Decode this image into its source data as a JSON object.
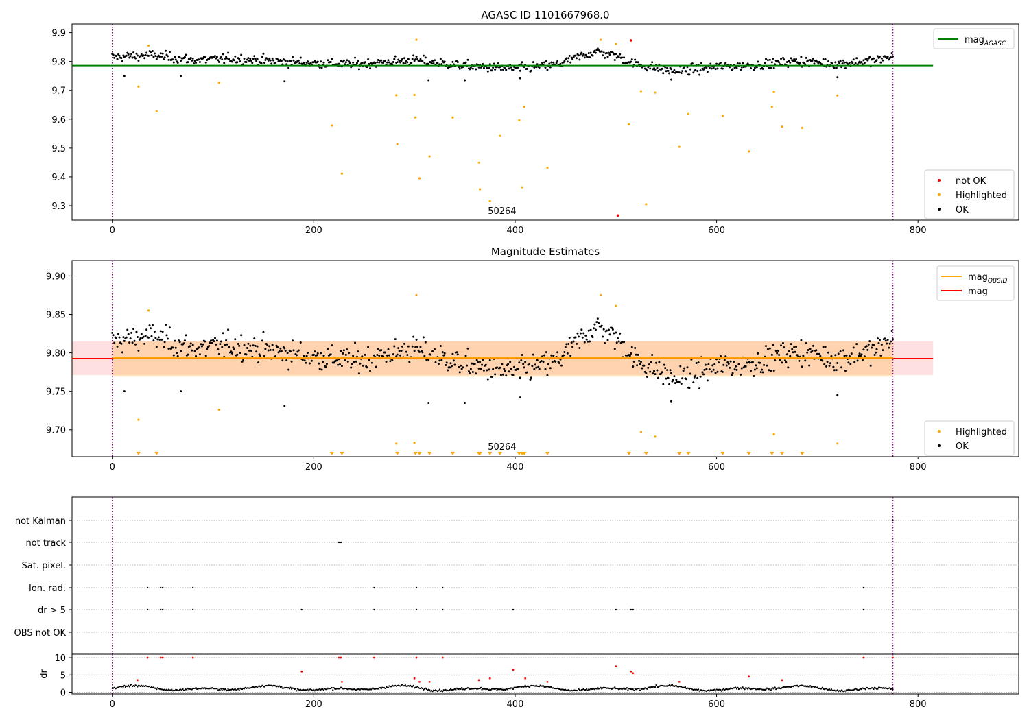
{
  "chart_data": [
    {
      "type": "scatter",
      "title": "AGASC ID 1101667968.0",
      "xlabel": "",
      "ylabel": "",
      "xlim": [
        -40,
        900
      ],
      "ylim": [
        9.25,
        9.93
      ],
      "xticks": [
        0,
        200,
        400,
        600,
        800
      ],
      "yticks": [
        9.3,
        9.4,
        9.5,
        9.6,
        9.7,
        9.8,
        9.9
      ],
      "ytick_labels": [
        "9.3",
        "9.4",
        "9.5",
        "9.6",
        "9.7",
        "9.8",
        "9.9"
      ],
      "vlines": [
        0,
        775
      ],
      "mag_agasc": 9.786,
      "mag_agasc_x": [
        -40,
        815
      ],
      "annotation": {
        "text": "50264",
        "x": 387,
        "y": 9.283
      },
      "legend_upper": [
        {
          "label": "mag",
          "sub": "AGASC",
          "color": "#008000",
          "kind": "line"
        }
      ],
      "legend_lower": [
        {
          "label": "not OK",
          "color": "#ff0000",
          "kind": "dot"
        },
        {
          "label": "Highlighted",
          "color": "#ffa500",
          "kind": "dot"
        },
        {
          "label": "OK",
          "color": "#000000",
          "kind": "dot"
        }
      ],
      "ok_trend": [
        [
          0,
          9.815
        ],
        [
          40,
          9.822
        ],
        [
          80,
          9.805
        ],
        [
          120,
          9.81
        ],
        [
          160,
          9.802
        ],
        [
          200,
          9.795
        ],
        [
          240,
          9.79
        ],
        [
          280,
          9.8
        ],
        [
          300,
          9.805
        ],
        [
          330,
          9.792
        ],
        [
          360,
          9.782
        ],
        [
          400,
          9.775
        ],
        [
          440,
          9.788
        ],
        [
          480,
          9.835
        ],
        [
          500,
          9.82
        ],
        [
          520,
          9.79
        ],
        [
          560,
          9.765
        ],
        [
          600,
          9.782
        ],
        [
          640,
          9.788
        ],
        [
          680,
          9.802
        ],
        [
          720,
          9.792
        ],
        [
          760,
          9.805
        ],
        [
          775,
          9.82
        ]
      ],
      "ok_scatter": 0.026,
      "highlighted": [
        [
          26,
          9.713
        ],
        [
          36,
          9.855
        ],
        [
          44,
          9.627
        ],
        [
          106,
          9.726
        ],
        [
          218,
          9.578
        ],
        [
          228,
          9.411
        ],
        [
          282,
          9.683
        ],
        [
          283,
          9.514
        ],
        [
          300,
          9.684
        ],
        [
          301,
          9.606
        ],
        [
          302,
          9.875
        ],
        [
          305,
          9.395
        ],
        [
          315,
          9.471
        ],
        [
          338,
          9.606
        ],
        [
          364,
          9.449
        ],
        [
          365,
          9.357
        ],
        [
          375,
          9.316
        ],
        [
          385,
          9.542
        ],
        [
          404,
          9.596
        ],
        [
          407,
          9.364
        ],
        [
          409,
          9.643
        ],
        [
          432,
          9.432
        ],
        [
          485,
          9.875
        ],
        [
          500,
          9.861
        ],
        [
          513,
          9.582
        ],
        [
          525,
          9.697
        ],
        [
          530,
          9.305
        ],
        [
          539,
          9.692
        ],
        [
          563,
          9.504
        ],
        [
          572,
          9.618
        ],
        [
          606,
          9.611
        ],
        [
          632,
          9.488
        ],
        [
          655,
          9.643
        ],
        [
          657,
          9.695
        ],
        [
          665,
          9.574
        ],
        [
          685,
          9.57
        ],
        [
          720,
          9.682
        ]
      ],
      "not_ok": [
        [
          502,
          9.266
        ],
        [
          515,
          9.873
        ]
      ]
    },
    {
      "type": "scatter",
      "title": "Magnitude Estimates",
      "xlabel": "",
      "ylabel": "",
      "xlim": [
        -40,
        900
      ],
      "ylim": [
        9.665,
        9.92
      ],
      "xticks": [
        0,
        200,
        400,
        600,
        800
      ],
      "yticks": [
        9.7,
        9.75,
        9.8,
        9.85,
        9.9
      ],
      "ytick_labels": [
        "9.70",
        "9.75",
        "9.80",
        "9.85",
        "9.90"
      ],
      "vlines": [
        0,
        775
      ],
      "mag": 9.7925,
      "mag_band": [
        9.771,
        9.815
      ],
      "mag_obsid": 9.7935,
      "mag_obsid_band": [
        9.769,
        9.815
      ],
      "band_x": [
        -40,
        815
      ],
      "obsid_x": [
        0,
        775
      ],
      "annotation": {
        "text": "50264",
        "x": 387,
        "y": 9.675
      },
      "legend_upper": [
        {
          "label": "mag",
          "sub": "OBSID",
          "color": "#ffa500",
          "kind": "line"
        },
        {
          "label": "mag",
          "sub": "",
          "color": "#ff0000",
          "kind": "line"
        }
      ],
      "legend_lower": [
        {
          "label": "Highlighted",
          "color": "#ffa500",
          "kind": "dot"
        },
        {
          "label": "OK",
          "color": "#000000",
          "kind": "dot"
        }
      ],
      "highlighted_in_range": [
        [
          26,
          9.713
        ],
        [
          36,
          9.855
        ],
        [
          106,
          9.726
        ],
        [
          282,
          9.682
        ],
        [
          300,
          9.683
        ],
        [
          302,
          9.875
        ],
        [
          485,
          9.875
        ],
        [
          500,
          9.861
        ],
        [
          525,
          9.697
        ],
        [
          539,
          9.691
        ],
        [
          657,
          9.694
        ],
        [
          720,
          9.682
        ]
      ],
      "highlighted_below_x": [
        26,
        44,
        218,
        228,
        283,
        301,
        305,
        315,
        338,
        364,
        365,
        375,
        385,
        404,
        407,
        409,
        432,
        513,
        530,
        563,
        572,
        606,
        632,
        655,
        665,
        685
      ]
    },
    {
      "type": "scatter",
      "title": "",
      "xlabel": "",
      "ylabel": "",
      "categories": [
        "not Kalman",
        "not track",
        "Sat. pixel.",
        "Ion. rad.",
        "dr > 5",
        "OBS not OK"
      ],
      "flags": {
        "not Kalman": [
          775
        ],
        "not track": [
          225,
          227
        ],
        "Sat. pixel.": [],
        "Ion. rad.": [
          35,
          48,
          50,
          80,
          260,
          302,
          328,
          746
        ],
        "dr > 5": [
          35,
          48,
          50,
          80,
          188,
          260,
          302,
          328,
          398,
          500,
          515,
          517,
          746
        ],
        "OBS not OK": []
      }
    },
    {
      "type": "scatter",
      "title": "",
      "xlabel": "",
      "ylabel": "dr",
      "xlim": [
        -40,
        900
      ],
      "ylim": [
        -0.5,
        11
      ],
      "xticks": [
        0,
        200,
        400,
        600,
        800
      ],
      "yticks": [
        0,
        5,
        10
      ],
      "ytick_labels": [
        "0",
        "5",
        "10"
      ],
      "red_points": [
        [
          25,
          3.5
        ],
        [
          35,
          10
        ],
        [
          48,
          10
        ],
        [
          50,
          10
        ],
        [
          80,
          10
        ],
        [
          188,
          6
        ],
        [
          225,
          10
        ],
        [
          227,
          10
        ],
        [
          228,
          3
        ],
        [
          260,
          10
        ],
        [
          300,
          4
        ],
        [
          302,
          10
        ],
        [
          305,
          3
        ],
        [
          315,
          3
        ],
        [
          328,
          10
        ],
        [
          364,
          3.5
        ],
        [
          375,
          4
        ],
        [
          398,
          6.5
        ],
        [
          410,
          4
        ],
        [
          432,
          3
        ],
        [
          500,
          7.5
        ],
        [
          515,
          6
        ],
        [
          517,
          5.5
        ],
        [
          563,
          3
        ],
        [
          632,
          4.5
        ],
        [
          665,
          3.5
        ],
        [
          746,
          10
        ],
        [
          775,
          10
        ]
      ]
    }
  ]
}
